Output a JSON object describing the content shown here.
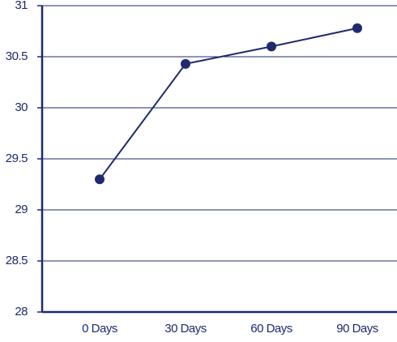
{
  "chart_data": {
    "type": "line",
    "categories": [
      "0 Days",
      "30 Days",
      "60 Days",
      "90 Days"
    ],
    "values": [
      29.3,
      30.43,
      30.6,
      30.78
    ],
    "color": "#1f2a6e",
    "ylim": [
      28,
      31
    ],
    "yticks": [
      28,
      28.5,
      29,
      29.5,
      30,
      30.5,
      31
    ],
    "grid": true
  }
}
